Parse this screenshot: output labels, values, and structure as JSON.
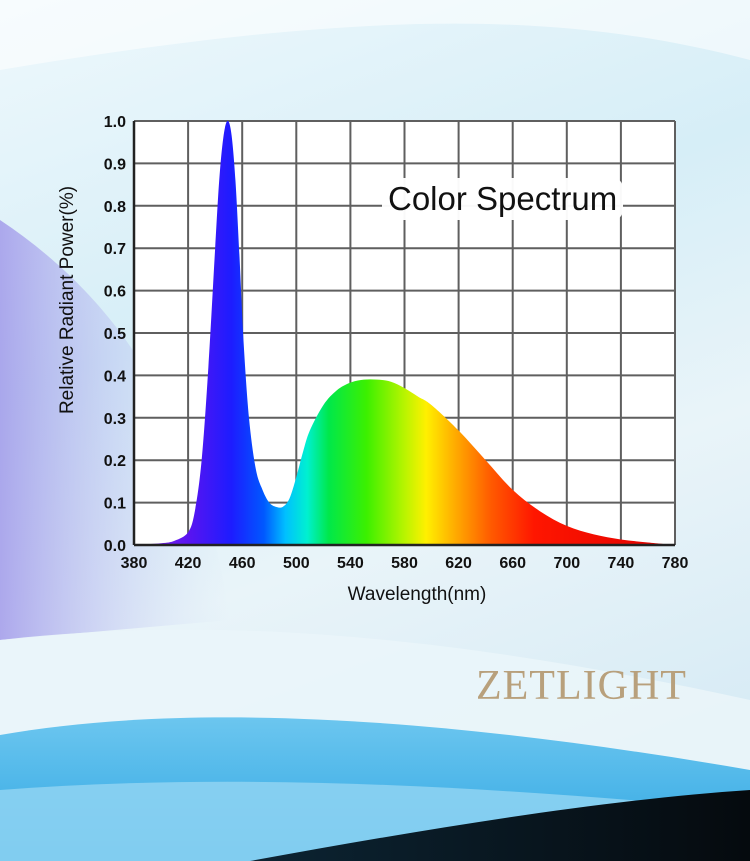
{
  "brand": {
    "name": "ZETLIGHT",
    "color": "#b8a07c"
  },
  "chart_data": {
    "type": "area",
    "title": "Color Spectrum",
    "xlabel": "Wavelength(nm)",
    "ylabel": "Relative Radiant Power(%)",
    "xlim": [
      380,
      780
    ],
    "ylim": [
      0,
      1.0
    ],
    "xticks": [
      380,
      420,
      460,
      500,
      540,
      580,
      620,
      660,
      700,
      740,
      780
    ],
    "yticks": [
      "0.0",
      "0.1",
      "0.2",
      "0.3",
      "0.4",
      "0.5",
      "0.6",
      "0.7",
      "0.8",
      "0.9",
      "1.0"
    ],
    "grid": true,
    "fill": "spectral-rainbow",
    "x": [
      380,
      400,
      410,
      420,
      425,
      430,
      435,
      440,
      443,
      446,
      449,
      452,
      455,
      458,
      461,
      465,
      470,
      475,
      480,
      485,
      490,
      495,
      500,
      505,
      510,
      520,
      530,
      540,
      550,
      560,
      570,
      580,
      590,
      600,
      620,
      640,
      660,
      680,
      700,
      720,
      740,
      760,
      780
    ],
    "y": [
      0.0,
      0.004,
      0.01,
      0.03,
      0.08,
      0.2,
      0.42,
      0.7,
      0.86,
      0.96,
      1.0,
      0.97,
      0.86,
      0.68,
      0.48,
      0.3,
      0.18,
      0.13,
      0.1,
      0.09,
      0.09,
      0.11,
      0.16,
      0.22,
      0.27,
      0.33,
      0.365,
      0.383,
      0.39,
      0.39,
      0.385,
      0.37,
      0.35,
      0.33,
      0.27,
      0.2,
      0.13,
      0.08,
      0.045,
      0.025,
      0.013,
      0.006,
      0.0
    ]
  }
}
